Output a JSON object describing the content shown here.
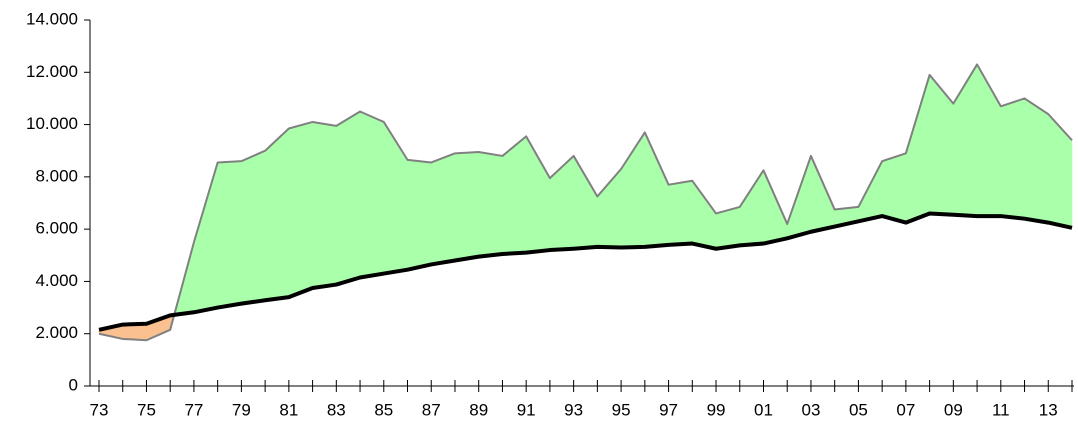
{
  "chart_data": {
    "type": "line",
    "categories": [
      "73",
      null,
      "75",
      null,
      "77",
      null,
      "79",
      null,
      "81",
      null,
      "83",
      null,
      "85",
      null,
      "87",
      null,
      "89",
      null,
      "91",
      null,
      "93",
      null,
      "95",
      null,
      "97",
      null,
      "99",
      null,
      "01",
      null,
      "03",
      null,
      "05",
      null,
      "07",
      null,
      "09",
      null,
      "11",
      null,
      "13",
      null
    ],
    "series": [
      {
        "color": "#808080",
        "values": [
          2000,
          1800,
          1750,
          2150,
          5500,
          8550,
          8600,
          9000,
          9850,
          10100,
          9950,
          10500,
          10100,
          8650,
          8550,
          8900,
          8950,
          8800,
          9550,
          7950,
          8800,
          7250,
          8300,
          9700,
          7700,
          7850,
          6600,
          6850,
          8250,
          6200,
          8800,
          6750,
          6850,
          8600,
          8900,
          11900,
          10800,
          12300,
          10700,
          11000,
          10400,
          9400
        ]
      },
      {
        "color": "#000000",
        "values": [
          2150,
          2350,
          2380,
          2700,
          2820,
          3000,
          3150,
          3280,
          3400,
          3750,
          3880,
          4150,
          4300,
          4450,
          4650,
          4800,
          4950,
          5050,
          5100,
          5200,
          5250,
          5320,
          5300,
          5320,
          5400,
          5450,
          5250,
          5380,
          5450,
          5650,
          5900,
          6100,
          6300,
          6500,
          6250,
          6600,
          6550,
          6500,
          6500,
          6400,
          6250,
          6050
        ]
      }
    ],
    "fill_above_color": "#aaffaa",
    "fill_below_color": "#fac090",
    "ylim": [
      0,
      14000
    ],
    "yticks": [
      0,
      {
        "value": 2000,
        "label": "2.000"
      },
      {
        "value": 4000,
        "label": "4.000"
      },
      {
        "value": 6000,
        "label": "6.000"
      },
      {
        "value": 8000,
        "label": "8.000"
      },
      {
        "value": 10000,
        "label": "10.000"
      },
      {
        "value": 12000,
        "label": "12.000"
      },
      {
        "value": 14000,
        "label": "14.000"
      }
    ],
    "grid": false
  }
}
